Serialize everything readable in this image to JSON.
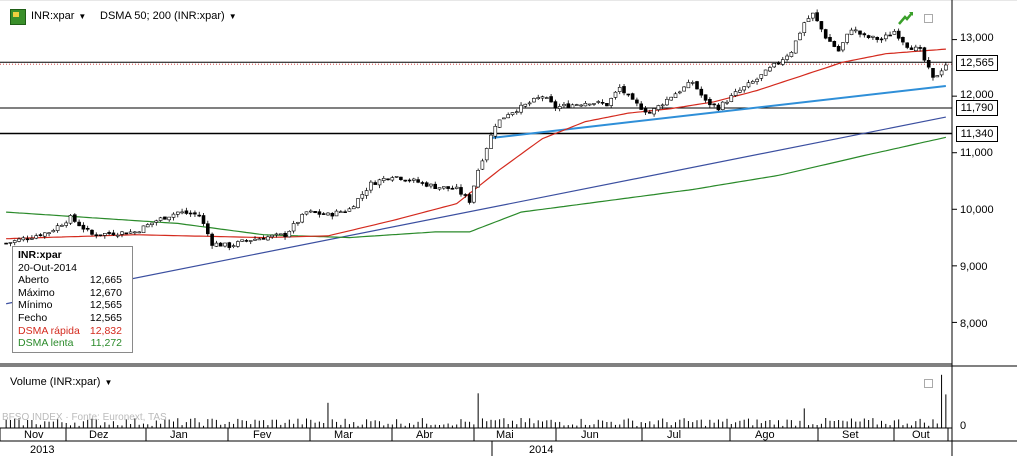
{
  "header": {
    "symbol_label": "INR:xpar",
    "indicator_label": "DSMA 50; 200 (INR:xpar)"
  },
  "volume_panel": {
    "label": "Volume (INR:xpar)",
    "axis_zero": "0",
    "watermark": "BFSO   INDEX   ·   Fonte: Euronext, TAS"
  },
  "info_box": {
    "title": "INR:xpar",
    "date": "20-Out-2014",
    "rows": [
      {
        "label": "Aberto",
        "value": "12,665"
      },
      {
        "label": "Máximo",
        "value": "12,670"
      },
      {
        "label": "Mínimo",
        "value": "12,565"
      },
      {
        "label": "Fecho",
        "value": "12,565"
      },
      {
        "label": "DSMA rápida",
        "value": "12,832"
      },
      {
        "label": "DSMA lenta",
        "value": "11,272"
      }
    ]
  },
  "price_tags": {
    "last": "12,565",
    "level1": "11,790",
    "level2": "11,340"
  },
  "colors": {
    "fast_ma": "#d42a1e",
    "slow_ma": "#2a8a2a",
    "trend_light": "#2f8fd8",
    "trend_dark": "#3b4fa0",
    "candle_up": "#ffffff",
    "candle_down": "#000000"
  },
  "chart_data": {
    "type": "candlestick",
    "y_axis": {
      "ticks": [
        "13,000",
        "12,000",
        "11,000",
        "10,000",
        "9,000",
        "8,000"
      ],
      "tick_values": [
        13000,
        12000,
        11000,
        10000,
        9000,
        8000
      ],
      "range": [
        7300,
        13700
      ]
    },
    "x_axis": {
      "months": [
        "Nov",
        "Dez",
        "Jan",
        "Fev",
        "Mar",
        "Abr",
        "Mai",
        "Jun",
        "Jul",
        "Ago",
        "Set",
        "Out"
      ],
      "years": [
        "2013",
        "2014"
      ]
    },
    "horizontal_levels": [
      12600,
      11790,
      11340
    ],
    "dotted_level": 12565,
    "price_path": [
      [
        0,
        9400
      ],
      [
        5,
        9500
      ],
      [
        10,
        9600
      ],
      [
        15,
        9850
      ],
      [
        20,
        9550
      ],
      [
        25,
        9580
      ],
      [
        30,
        9600
      ],
      [
        35,
        9800
      ],
      [
        40,
        9950
      ],
      [
        45,
        9900
      ],
      [
        48,
        9400
      ],
      [
        52,
        9350
      ],
      [
        56,
        9450
      ],
      [
        60,
        9500
      ],
      [
        65,
        9550
      ],
      [
        70,
        9950
      ],
      [
        75,
        9900
      ],
      [
        80,
        10000
      ],
      [
        85,
        10450
      ],
      [
        90,
        10600
      ],
      [
        95,
        10500
      ],
      [
        100,
        10400
      ],
      [
        105,
        10350
      ],
      [
        108,
        10150
      ],
      [
        110,
        10700
      ],
      [
        112,
        11100
      ],
      [
        114,
        11500
      ],
      [
        117,
        11700
      ],
      [
        120,
        11800
      ],
      [
        125,
        12000
      ],
      [
        128,
        11800
      ],
      [
        132,
        11850
      ],
      [
        136,
        11900
      ],
      [
        140,
        11850
      ],
      [
        143,
        12150
      ],
      [
        146,
        11900
      ],
      [
        150,
        11700
      ],
      [
        155,
        12000
      ],
      [
        160,
        12250
      ],
      [
        163,
        11900
      ],
      [
        166,
        11800
      ],
      [
        170,
        12050
      ],
      [
        175,
        12300
      ],
      [
        180,
        12600
      ],
      [
        183,
        12800
      ],
      [
        186,
        13300
      ],
      [
        188,
        13450
      ],
      [
        191,
        13050
      ],
      [
        194,
        12800
      ],
      [
        197,
        13200
      ],
      [
        200,
        13050
      ],
      [
        204,
        13000
      ],
      [
        207,
        13150
      ],
      [
        210,
        12900
      ],
      [
        213,
        12800
      ],
      [
        216,
        12300
      ],
      [
        219,
        12565
      ]
    ],
    "total_bars": 220,
    "fast_ma": [
      [
        0,
        9480
      ],
      [
        30,
        9550
      ],
      [
        60,
        9500
      ],
      [
        75,
        9530
      ],
      [
        90,
        9800
      ],
      [
        105,
        10100
      ],
      [
        115,
        10700
      ],
      [
        125,
        11250
      ],
      [
        135,
        11550
      ],
      [
        145,
        11700
      ],
      [
        155,
        11780
      ],
      [
        165,
        11900
      ],
      [
        175,
        12100
      ],
      [
        185,
        12350
      ],
      [
        195,
        12600
      ],
      [
        205,
        12750
      ],
      [
        219,
        12832
      ]
    ],
    "slow_ma": [
      [
        0,
        9950
      ],
      [
        20,
        9850
      ],
      [
        40,
        9750
      ],
      [
        60,
        9550
      ],
      [
        80,
        9500
      ],
      [
        100,
        9600
      ],
      [
        108,
        9600
      ],
      [
        120,
        9950
      ],
      [
        140,
        10150
      ],
      [
        160,
        10350
      ],
      [
        180,
        10600
      ],
      [
        200,
        10950
      ],
      [
        219,
        11272
      ]
    ],
    "trend_lines": [
      {
        "name": "light",
        "from": [
          113,
          11260
        ],
        "to": [
          219,
          12180
        ]
      },
      {
        "name": "dark",
        "from": [
          0,
          8330
        ],
        "to": [
          219,
          11630
        ]
      }
    ],
    "volume": {
      "spikes": [
        [
          110,
          0.62
        ],
        [
          75,
          0.45
        ],
        [
          186,
          0.35
        ],
        [
          218,
          0.95
        ],
        [
          219,
          0.6
        ]
      ],
      "base_level": 0.12
    }
  }
}
